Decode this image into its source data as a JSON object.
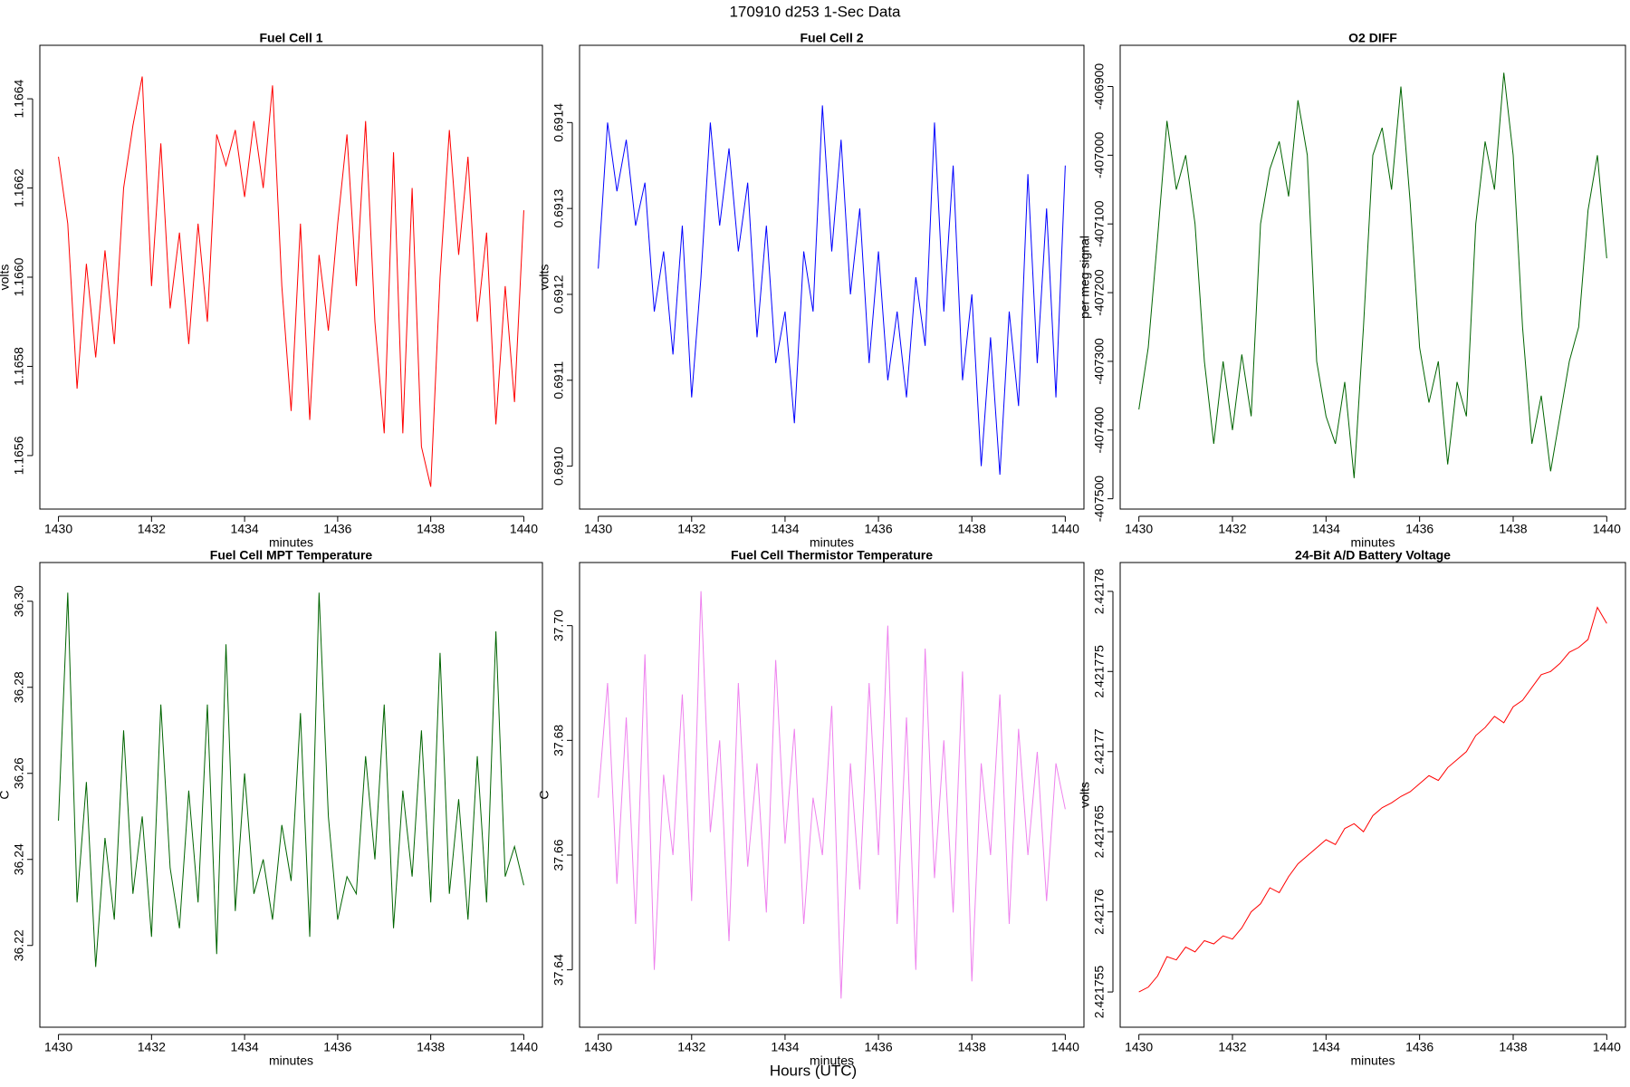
{
  "title": "170910   d253   1-Sec Data",
  "xlabel": "Hours (UTC)",
  "chart_data": [
    {
      "type": "line",
      "title": "Fuel Cell 1",
      "xlabel": "minutes",
      "ylabel": "volts",
      "color": "#ff0000",
      "x": [
        1430,
        1430.2,
        1430.4,
        1430.6,
        1430.8,
        1431,
        1431.2,
        1431.4,
        1431.6,
        1431.8,
        1432,
        1432.2,
        1432.4,
        1432.6,
        1432.8,
        1433,
        1433.2,
        1433.4,
        1433.6,
        1433.8,
        1434,
        1434.2,
        1434.4,
        1434.6,
        1434.8,
        1435,
        1435.2,
        1435.4,
        1435.6,
        1435.8,
        1436,
        1436.2,
        1436.4,
        1436.6,
        1436.8,
        1437,
        1437.2,
        1437.4,
        1437.6,
        1437.8,
        1438,
        1438.2,
        1438.4,
        1438.6,
        1438.8,
        1439,
        1439.2,
        1439.4,
        1439.6,
        1439.8,
        1440
      ],
      "values": [
        1.16627,
        1.16612,
        1.16575,
        1.16603,
        1.16582,
        1.16606,
        1.16585,
        1.1662,
        1.16634,
        1.16645,
        1.16598,
        1.1663,
        1.16593,
        1.1661,
        1.16585,
        1.16612,
        1.1659,
        1.16632,
        1.16625,
        1.16633,
        1.16618,
        1.16635,
        1.1662,
        1.16643,
        1.16598,
        1.1657,
        1.16612,
        1.16568,
        1.16605,
        1.16588,
        1.16612,
        1.16632,
        1.16598,
        1.16635,
        1.1659,
        1.16565,
        1.16628,
        1.16565,
        1.1662,
        1.16562,
        1.16553,
        1.166,
        1.16633,
        1.16605,
        1.16627,
        1.1659,
        1.1661,
        1.16567,
        1.16598,
        1.16572,
        1.16615
      ],
      "xlim": [
        1429.6,
        1440.4
      ],
      "xticks": [
        1430,
        1432,
        1434,
        1436,
        1438,
        1440
      ],
      "ylim": [
        1.16548,
        1.16652
      ],
      "yticks": [
        1.1656,
        1.1658,
        {
          "value": 1.166,
          "label": "1.1660"
        },
        1.1662,
        1.1664
      ]
    },
    {
      "type": "line",
      "title": "Fuel Cell 2",
      "xlabel": "minutes",
      "ylabel": "volts",
      "color": "#0000ff",
      "x": [
        1430,
        1430.2,
        1430.4,
        1430.6,
        1430.8,
        1431,
        1431.2,
        1431.4,
        1431.6,
        1431.8,
        1432,
        1432.2,
        1432.4,
        1432.6,
        1432.8,
        1433,
        1433.2,
        1433.4,
        1433.6,
        1433.8,
        1434,
        1434.2,
        1434.4,
        1434.6,
        1434.8,
        1435,
        1435.2,
        1435.4,
        1435.6,
        1435.8,
        1436,
        1436.2,
        1436.4,
        1436.6,
        1436.8,
        1437,
        1437.2,
        1437.4,
        1437.6,
        1437.8,
        1438,
        1438.2,
        1438.4,
        1438.6,
        1438.8,
        1439,
        1439.2,
        1439.4,
        1439.6,
        1439.8,
        1440
      ],
      "values": [
        0.69123,
        0.6914,
        0.69132,
        0.69138,
        0.69128,
        0.69133,
        0.69118,
        0.69125,
        0.69113,
        0.69128,
        0.69108,
        0.69122,
        0.6914,
        0.69128,
        0.69137,
        0.69125,
        0.69133,
        0.69115,
        0.69128,
        0.69112,
        0.69118,
        0.69105,
        0.69125,
        0.69118,
        0.69142,
        0.69125,
        0.69138,
        0.6912,
        0.6913,
        0.69112,
        0.69125,
        0.6911,
        0.69118,
        0.69108,
        0.69122,
        0.69114,
        0.6914,
        0.69118,
        0.69135,
        0.6911,
        0.6912,
        0.691,
        0.69115,
        0.69099,
        0.69118,
        0.69107,
        0.69134,
        0.69112,
        0.6913,
        0.69108,
        0.69135
      ],
      "xlim": [
        1429.6,
        1440.4
      ],
      "xticks": [
        1430,
        1432,
        1434,
        1436,
        1438,
        1440
      ],
      "ylim": [
        0.69095,
        0.69149
      ],
      "yticks": [
        {
          "value": 0.691,
          "label": "0.6910"
        },
        0.6911,
        0.6912,
        0.6913,
        0.6914
      ]
    },
    {
      "type": "line",
      "title": "O2 DIFF",
      "xlabel": "minutes",
      "ylabel": "per meg signal",
      "color": "#006400",
      "x": [
        1430,
        1430.2,
        1430.4,
        1430.6,
        1430.8,
        1431,
        1431.2,
        1431.4,
        1431.6,
        1431.8,
        1432,
        1432.2,
        1432.4,
        1432.6,
        1432.8,
        1433,
        1433.2,
        1433.4,
        1433.6,
        1433.8,
        1434,
        1434.2,
        1434.4,
        1434.6,
        1434.8,
        1435,
        1435.2,
        1435.4,
        1435.6,
        1435.8,
        1436,
        1436.2,
        1436.4,
        1436.6,
        1436.8,
        1437,
        1437.2,
        1437.4,
        1437.6,
        1437.8,
        1438,
        1438.2,
        1438.4,
        1438.6,
        1438.8,
        1439,
        1439.2,
        1439.4,
        1439.6,
        1439.8,
        1440
      ],
      "values": [
        -407370,
        -407280,
        -407120,
        -406950,
        -407050,
        -407000,
        -407100,
        -407300,
        -407420,
        -407300,
        -407400,
        -407290,
        -407380,
        -407100,
        -407020,
        -406980,
        -407060,
        -406920,
        -407000,
        -407300,
        -407380,
        -407420,
        -407330,
        -407470,
        -407250,
        -407000,
        -406960,
        -407050,
        -406900,
        -407070,
        -407280,
        -407360,
        -407300,
        -407450,
        -407330,
        -407380,
        -407100,
        -406980,
        -407050,
        -406880,
        -407000,
        -407250,
        -407420,
        -407350,
        -407460,
        -407380,
        -407300,
        -407250,
        -407080,
        -407000,
        -407150
      ],
      "xlim": [
        1429.6,
        1440.4
      ],
      "xticks": [
        1430,
        1432,
        1434,
        1436,
        1438,
        1440
      ],
      "ylim": [
        -407515,
        -406840
      ],
      "yticks": [
        -407500,
        -407400,
        -407300,
        -407200,
        -407100,
        -407000,
        -406900
      ]
    },
    {
      "type": "line",
      "title": "Fuel Cell MPT Temperature",
      "xlabel": "minutes",
      "ylabel": "C",
      "color": "#006400",
      "x": [
        1430,
        1430.2,
        1430.4,
        1430.6,
        1430.8,
        1431,
        1431.2,
        1431.4,
        1431.6,
        1431.8,
        1432,
        1432.2,
        1432.4,
        1432.6,
        1432.8,
        1433,
        1433.2,
        1433.4,
        1433.6,
        1433.8,
        1434,
        1434.2,
        1434.4,
        1434.6,
        1434.8,
        1435,
        1435.2,
        1435.4,
        1435.6,
        1435.8,
        1436,
        1436.2,
        1436.4,
        1436.6,
        1436.8,
        1437,
        1437.2,
        1437.4,
        1437.6,
        1437.8,
        1438,
        1438.2,
        1438.4,
        1438.6,
        1438.8,
        1439,
        1439.2,
        1439.4,
        1439.6,
        1439.8,
        1440
      ],
      "values": [
        36.249,
        36.302,
        36.23,
        36.258,
        36.215,
        36.245,
        36.226,
        36.27,
        36.232,
        36.25,
        36.222,
        36.276,
        36.238,
        36.224,
        36.256,
        36.23,
        36.276,
        36.218,
        36.29,
        36.228,
        36.26,
        36.232,
        36.24,
        36.226,
        36.248,
        36.235,
        36.274,
        36.222,
        36.302,
        36.25,
        36.226,
        36.236,
        36.232,
        36.264,
        36.24,
        36.276,
        36.224,
        36.256,
        36.236,
        36.27,
        36.23,
        36.288,
        36.232,
        36.254,
        36.226,
        36.264,
        36.23,
        36.293,
        36.236,
        36.243,
        36.234
      ],
      "xlim": [
        1429.6,
        1440.4
      ],
      "xticks": [
        1430,
        1432,
        1434,
        1436,
        1438,
        1440
      ],
      "ylim": [
        36.201,
        36.309
      ],
      "yticks": [
        36.22,
        36.24,
        36.26,
        36.28,
        {
          "value": 36.3,
          "label": "36.30"
        }
      ]
    },
    {
      "type": "line",
      "title": "Fuel Cell Thermistor Temperature",
      "xlabel": "minutes",
      "ylabel": "C",
      "color": "#ee82ee",
      "x": [
        1430,
        1430.2,
        1430.4,
        1430.6,
        1430.8,
        1431,
        1431.2,
        1431.4,
        1431.6,
        1431.8,
        1432,
        1432.2,
        1432.4,
        1432.6,
        1432.8,
        1433,
        1433.2,
        1433.4,
        1433.6,
        1433.8,
        1434,
        1434.2,
        1434.4,
        1434.6,
        1434.8,
        1435,
        1435.2,
        1435.4,
        1435.6,
        1435.8,
        1436,
        1436.2,
        1436.4,
        1436.6,
        1436.8,
        1437,
        1437.2,
        1437.4,
        1437.6,
        1437.8,
        1438,
        1438.2,
        1438.4,
        1438.6,
        1438.8,
        1439,
        1439.2,
        1439.4,
        1439.6,
        1439.8,
        1440
      ],
      "values": [
        37.67,
        37.69,
        37.655,
        37.684,
        37.648,
        37.695,
        37.64,
        37.674,
        37.66,
        37.688,
        37.652,
        37.706,
        37.664,
        37.68,
        37.645,
        37.69,
        37.658,
        37.676,
        37.65,
        37.694,
        37.662,
        37.682,
        37.648,
        37.67,
        37.66,
        37.686,
        37.635,
        37.676,
        37.654,
        37.69,
        37.66,
        37.7,
        37.648,
        37.684,
        37.64,
        37.696,
        37.656,
        37.68,
        37.65,
        37.692,
        37.638,
        37.676,
        37.66,
        37.688,
        37.648,
        37.682,
        37.66,
        37.678,
        37.652,
        37.676,
        37.668
      ],
      "xlim": [
        1429.6,
        1440.4
      ],
      "xticks": [
        1430,
        1432,
        1434,
        1436,
        1438,
        1440
      ],
      "ylim": [
        37.63,
        37.711
      ],
      "yticks": [
        37.64,
        37.66,
        37.68,
        {
          "value": 37.7,
          "label": "37.70"
        }
      ]
    },
    {
      "type": "line",
      "title": "24-Bit A/D Battery Voltage",
      "xlabel": "minutes",
      "ylabel": "volts",
      "color": "#ff0000",
      "x": [
        1430,
        1430.2,
        1430.4,
        1430.6,
        1430.8,
        1431,
        1431.2,
        1431.4,
        1431.6,
        1431.8,
        1432,
        1432.2,
        1432.4,
        1432.6,
        1432.8,
        1433,
        1433.2,
        1433.4,
        1433.6,
        1433.8,
        1434,
        1434.2,
        1434.4,
        1434.6,
        1434.8,
        1435,
        1435.2,
        1435.4,
        1435.6,
        1435.8,
        1436,
        1436.2,
        1436.4,
        1436.6,
        1436.8,
        1437,
        1437.2,
        1437.4,
        1437.6,
        1437.8,
        1438,
        1438.2,
        1438.4,
        1438.6,
        1438.8,
        1439,
        1439.2,
        1439.4,
        1439.6,
        1439.8,
        1440
      ],
      "values": [
        2.421755,
        2.4217553,
        2.421756,
        2.4217572,
        2.421757,
        2.4217578,
        2.4217575,
        2.4217582,
        2.421758,
        2.4217585,
        2.4217583,
        2.421759,
        2.42176,
        2.4217605,
        2.4217615,
        2.4217612,
        2.4217622,
        2.421763,
        2.4217635,
        2.421764,
        2.4217645,
        2.4217642,
        2.4217652,
        2.4217655,
        2.421765,
        2.421766,
        2.4217665,
        2.4217668,
        2.4217672,
        2.4217675,
        2.421768,
        2.4217685,
        2.4217682,
        2.421769,
        2.4217695,
        2.42177,
        2.421771,
        2.4217715,
        2.4217722,
        2.4217718,
        2.4217728,
        2.4217732,
        2.421774,
        2.4217748,
        2.421775,
        2.4217755,
        2.4217762,
        2.4217765,
        2.421777,
        2.421779,
        2.421778
      ],
      "xlim": [
        1429.6,
        1440.4
      ],
      "xticks": [
        1430,
        1432,
        1434,
        1436,
        1438,
        1440
      ],
      "ylim": [
        2.4217528,
        2.4217818
      ],
      "yticks": [
        2.421755,
        2.42176,
        2.421765,
        2.42177,
        2.421775,
        2.42178
      ]
    }
  ]
}
